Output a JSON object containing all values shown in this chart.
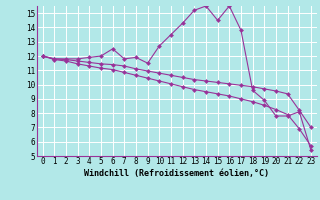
{
  "xlabel": "Windchill (Refroidissement éolien,°C)",
  "background_color": "#b2e8e8",
  "grid_color": "#ccecec",
  "line_color": "#993399",
  "xlim": [
    -0.5,
    23.5
  ],
  "ylim": [
    5,
    15.5
  ],
  "yticks": [
    5,
    6,
    7,
    8,
    9,
    10,
    11,
    12,
    13,
    14,
    15
  ],
  "xticks": [
    0,
    1,
    2,
    3,
    4,
    5,
    6,
    7,
    8,
    9,
    10,
    11,
    12,
    13,
    14,
    15,
    16,
    17,
    18,
    19,
    20,
    21,
    22,
    23
  ],
  "line1_x": [
    0,
    1,
    2,
    3,
    4,
    5,
    6,
    7,
    8,
    9,
    10,
    11,
    12,
    13,
    14,
    15,
    16,
    17,
    18,
    19,
    20,
    21,
    22,
    23
  ],
  "line1_y": [
    12.0,
    11.8,
    11.8,
    11.8,
    11.9,
    12.0,
    12.5,
    11.8,
    11.9,
    11.5,
    12.7,
    13.5,
    14.3,
    15.2,
    15.5,
    14.5,
    15.5,
    13.8,
    9.6,
    8.9,
    7.8,
    7.8,
    8.1,
    5.4
  ],
  "line2_x": [
    0,
    1,
    2,
    3,
    4,
    5,
    6,
    7,
    8,
    9,
    10,
    11,
    12,
    13,
    14,
    15,
    16,
    17,
    18,
    19,
    20,
    21,
    22,
    23
  ],
  "line2_y": [
    12.0,
    11.8,
    11.75,
    11.65,
    11.55,
    11.45,
    11.4,
    11.3,
    11.1,
    10.95,
    10.8,
    10.65,
    10.5,
    10.35,
    10.25,
    10.15,
    10.05,
    9.95,
    9.85,
    9.7,
    9.55,
    9.35,
    8.2,
    7.0
  ],
  "line3_x": [
    0,
    1,
    2,
    3,
    4,
    5,
    6,
    7,
    8,
    9,
    10,
    11,
    12,
    13,
    14,
    15,
    16,
    17,
    18,
    19,
    20,
    21,
    22,
    23
  ],
  "line3_y": [
    12.0,
    11.75,
    11.65,
    11.45,
    11.3,
    11.15,
    11.05,
    10.85,
    10.65,
    10.45,
    10.25,
    10.05,
    9.85,
    9.65,
    9.5,
    9.35,
    9.2,
    9.0,
    8.8,
    8.55,
    8.25,
    7.9,
    6.9,
    5.7
  ],
  "tick_fontsize": 5.5,
  "xlabel_fontsize": 6.0,
  "marker": "D",
  "markersize": 2.0,
  "linewidth": 0.8
}
